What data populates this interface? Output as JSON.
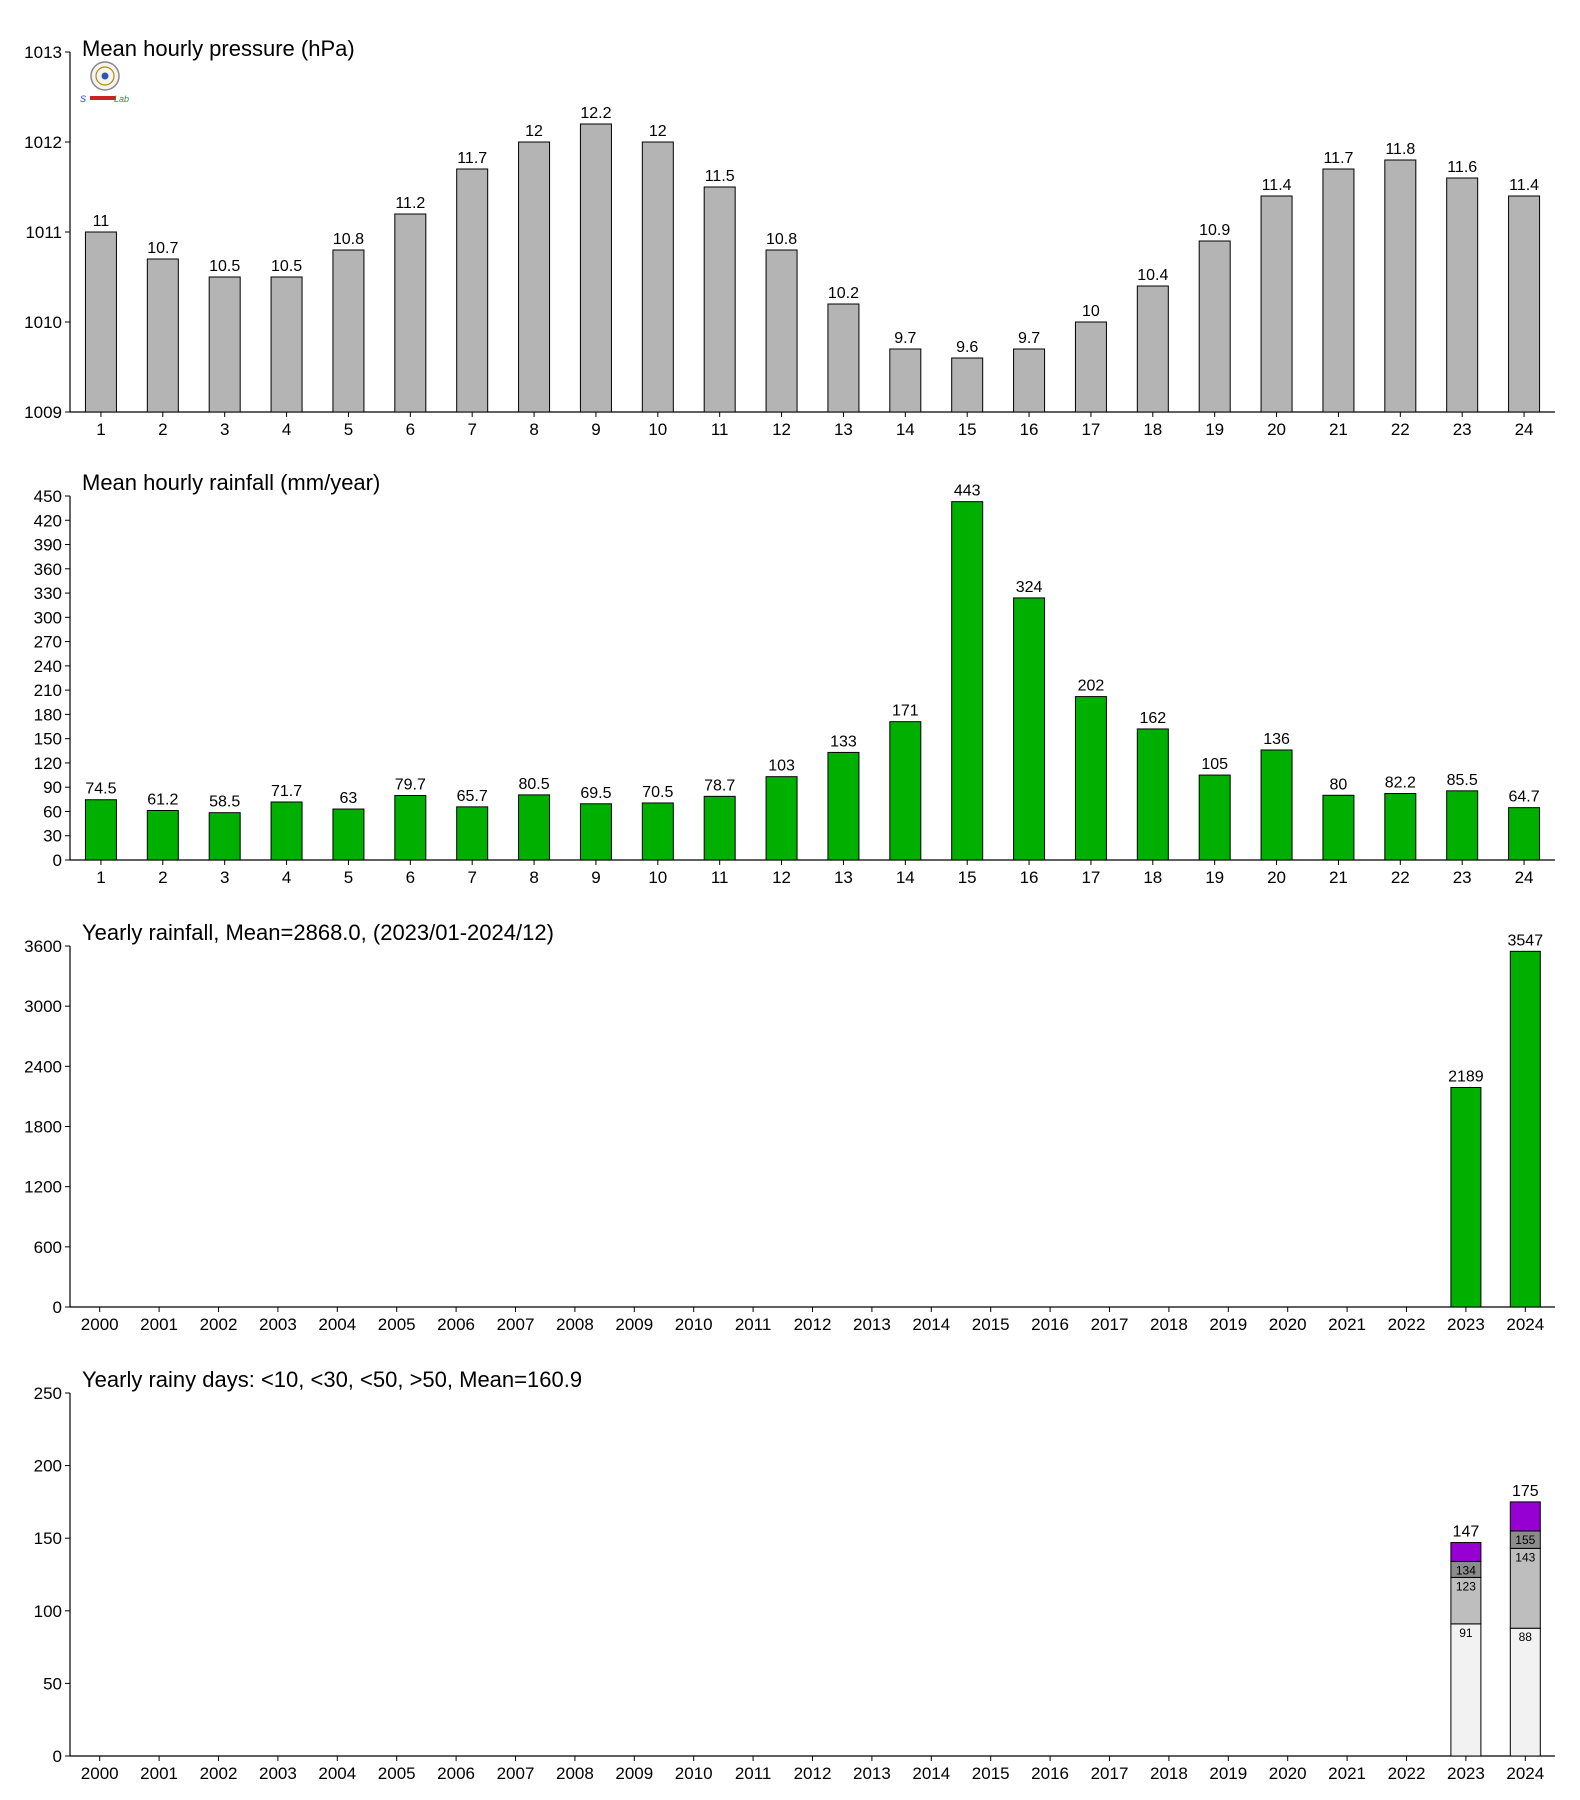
{
  "chart_data": [
    {
      "type": "bar",
      "title": "Mean hourly pressure (hPa)",
      "categories": [
        "1",
        "2",
        "3",
        "4",
        "5",
        "6",
        "7",
        "8",
        "9",
        "10",
        "11",
        "12",
        "13",
        "14",
        "15",
        "16",
        "17",
        "18",
        "19",
        "20",
        "21",
        "22",
        "23",
        "24"
      ],
      "values": [
        1011.0,
        1010.7,
        1010.5,
        1010.5,
        1010.8,
        1011.2,
        1011.7,
        1012.0,
        1012.2,
        1012.0,
        1011.5,
        1010.8,
        1010.2,
        1009.7,
        1009.6,
        1009.7,
        1010.0,
        1010.4,
        1010.9,
        1011.4,
        1011.7,
        1011.8,
        1011.6,
        1011.4
      ],
      "labels": [
        "11",
        "10.7",
        "10.5",
        "10.5",
        "10.8",
        "11.2",
        "11.7",
        "12",
        "12.2",
        "12",
        "11.5",
        "10.8",
        "10.2",
        "9.7",
        "9.6",
        "9.7",
        "10",
        "10.4",
        "10.9",
        "11.4",
        "11.7",
        "11.8",
        "11.6",
        "11.4"
      ],
      "ylim": [
        1009,
        1013
      ],
      "yticks": [
        1009,
        1010,
        1011,
        1012,
        1013
      ],
      "bar_color": "#b4b4b4"
    },
    {
      "type": "bar",
      "title": "Mean hourly rainfall (mm/year)",
      "categories": [
        "1",
        "2",
        "3",
        "4",
        "5",
        "6",
        "7",
        "8",
        "9",
        "10",
        "11",
        "12",
        "13",
        "14",
        "15",
        "16",
        "17",
        "18",
        "19",
        "20",
        "21",
        "22",
        "23",
        "24"
      ],
      "values": [
        74.5,
        61.2,
        58.5,
        71.7,
        63,
        79.7,
        65.7,
        80.5,
        69.5,
        70.5,
        78.7,
        103,
        133,
        171,
        443,
        324,
        202,
        162,
        105,
        136,
        80,
        82.2,
        85.5,
        64.7
      ],
      "labels": [
        "74.5",
        "61.2",
        "58.5",
        "71.7",
        "63",
        "79.7",
        "65.7",
        "80.5",
        "69.5",
        "70.5",
        "78.7",
        "103",
        "133",
        "171",
        "443",
        "324",
        "202",
        "162",
        "105",
        "136",
        "80",
        "82.2",
        "85.5",
        "64.7"
      ],
      "ylim": [
        0,
        450
      ],
      "yticks": [
        0,
        30,
        60,
        90,
        120,
        150,
        180,
        210,
        240,
        270,
        300,
        330,
        360,
        390,
        420,
        450
      ],
      "bar_color": "#00b000"
    },
    {
      "type": "bar",
      "title": "Yearly rainfall, Mean=2868.0, (2023/01-2024/12)",
      "categories": [
        "2000",
        "2001",
        "2002",
        "2003",
        "2004",
        "2005",
        "2006",
        "2007",
        "2008",
        "2009",
        "2010",
        "2011",
        "2012",
        "2013",
        "2014",
        "2015",
        "2016",
        "2017",
        "2018",
        "2019",
        "2020",
        "2021",
        "2022",
        "2023",
        "2024"
      ],
      "values": [
        null,
        null,
        null,
        null,
        null,
        null,
        null,
        null,
        null,
        null,
        null,
        null,
        null,
        null,
        null,
        null,
        null,
        null,
        null,
        null,
        null,
        null,
        null,
        2189,
        3547
      ],
      "labels": [
        "",
        "",
        "",
        "",
        "",
        "",
        "",
        "",
        "",
        "",
        "",
        "",
        "",
        "",
        "",
        "",
        "",
        "",
        "",
        "",
        "",
        "",
        "",
        "2189",
        "3547"
      ],
      "ylim": [
        0,
        3600
      ],
      "yticks": [
        0,
        600,
        1200,
        1800,
        2400,
        3000,
        3600
      ],
      "bar_color": "#00b000"
    },
    {
      "type": "stacked-bar",
      "title": "Yearly rainy days: <10, <30, <50, >50, Mean=160.9",
      "categories": [
        "2000",
        "2001",
        "2002",
        "2003",
        "2004",
        "2005",
        "2006",
        "2007",
        "2008",
        "2009",
        "2010",
        "2011",
        "2012",
        "2013",
        "2014",
        "2015",
        "2016",
        "2017",
        "2018",
        "2019",
        "2020",
        "2021",
        "2022",
        "2023",
        "2024"
      ],
      "ylim": [
        0,
        250
      ],
      "yticks": [
        0,
        50,
        100,
        150,
        200,
        250
      ],
      "stacks": [
        {
          "category": "2023",
          "cumulative": [
            91,
            123,
            134,
            147
          ],
          "labels": [
            "91",
            "123",
            "134",
            "147"
          ]
        },
        {
          "category": "2024",
          "cumulative": [
            88,
            143,
            155,
            175
          ],
          "labels": [
            "88",
            "143",
            "155",
            "175"
          ]
        }
      ],
      "segment_colors": [
        "#f2f2f2",
        "#bebebe",
        "#8c8c8c",
        "#9600d2"
      ]
    }
  ],
  "logo": {
    "text_a": "S",
    "text_b": "Lab"
  }
}
